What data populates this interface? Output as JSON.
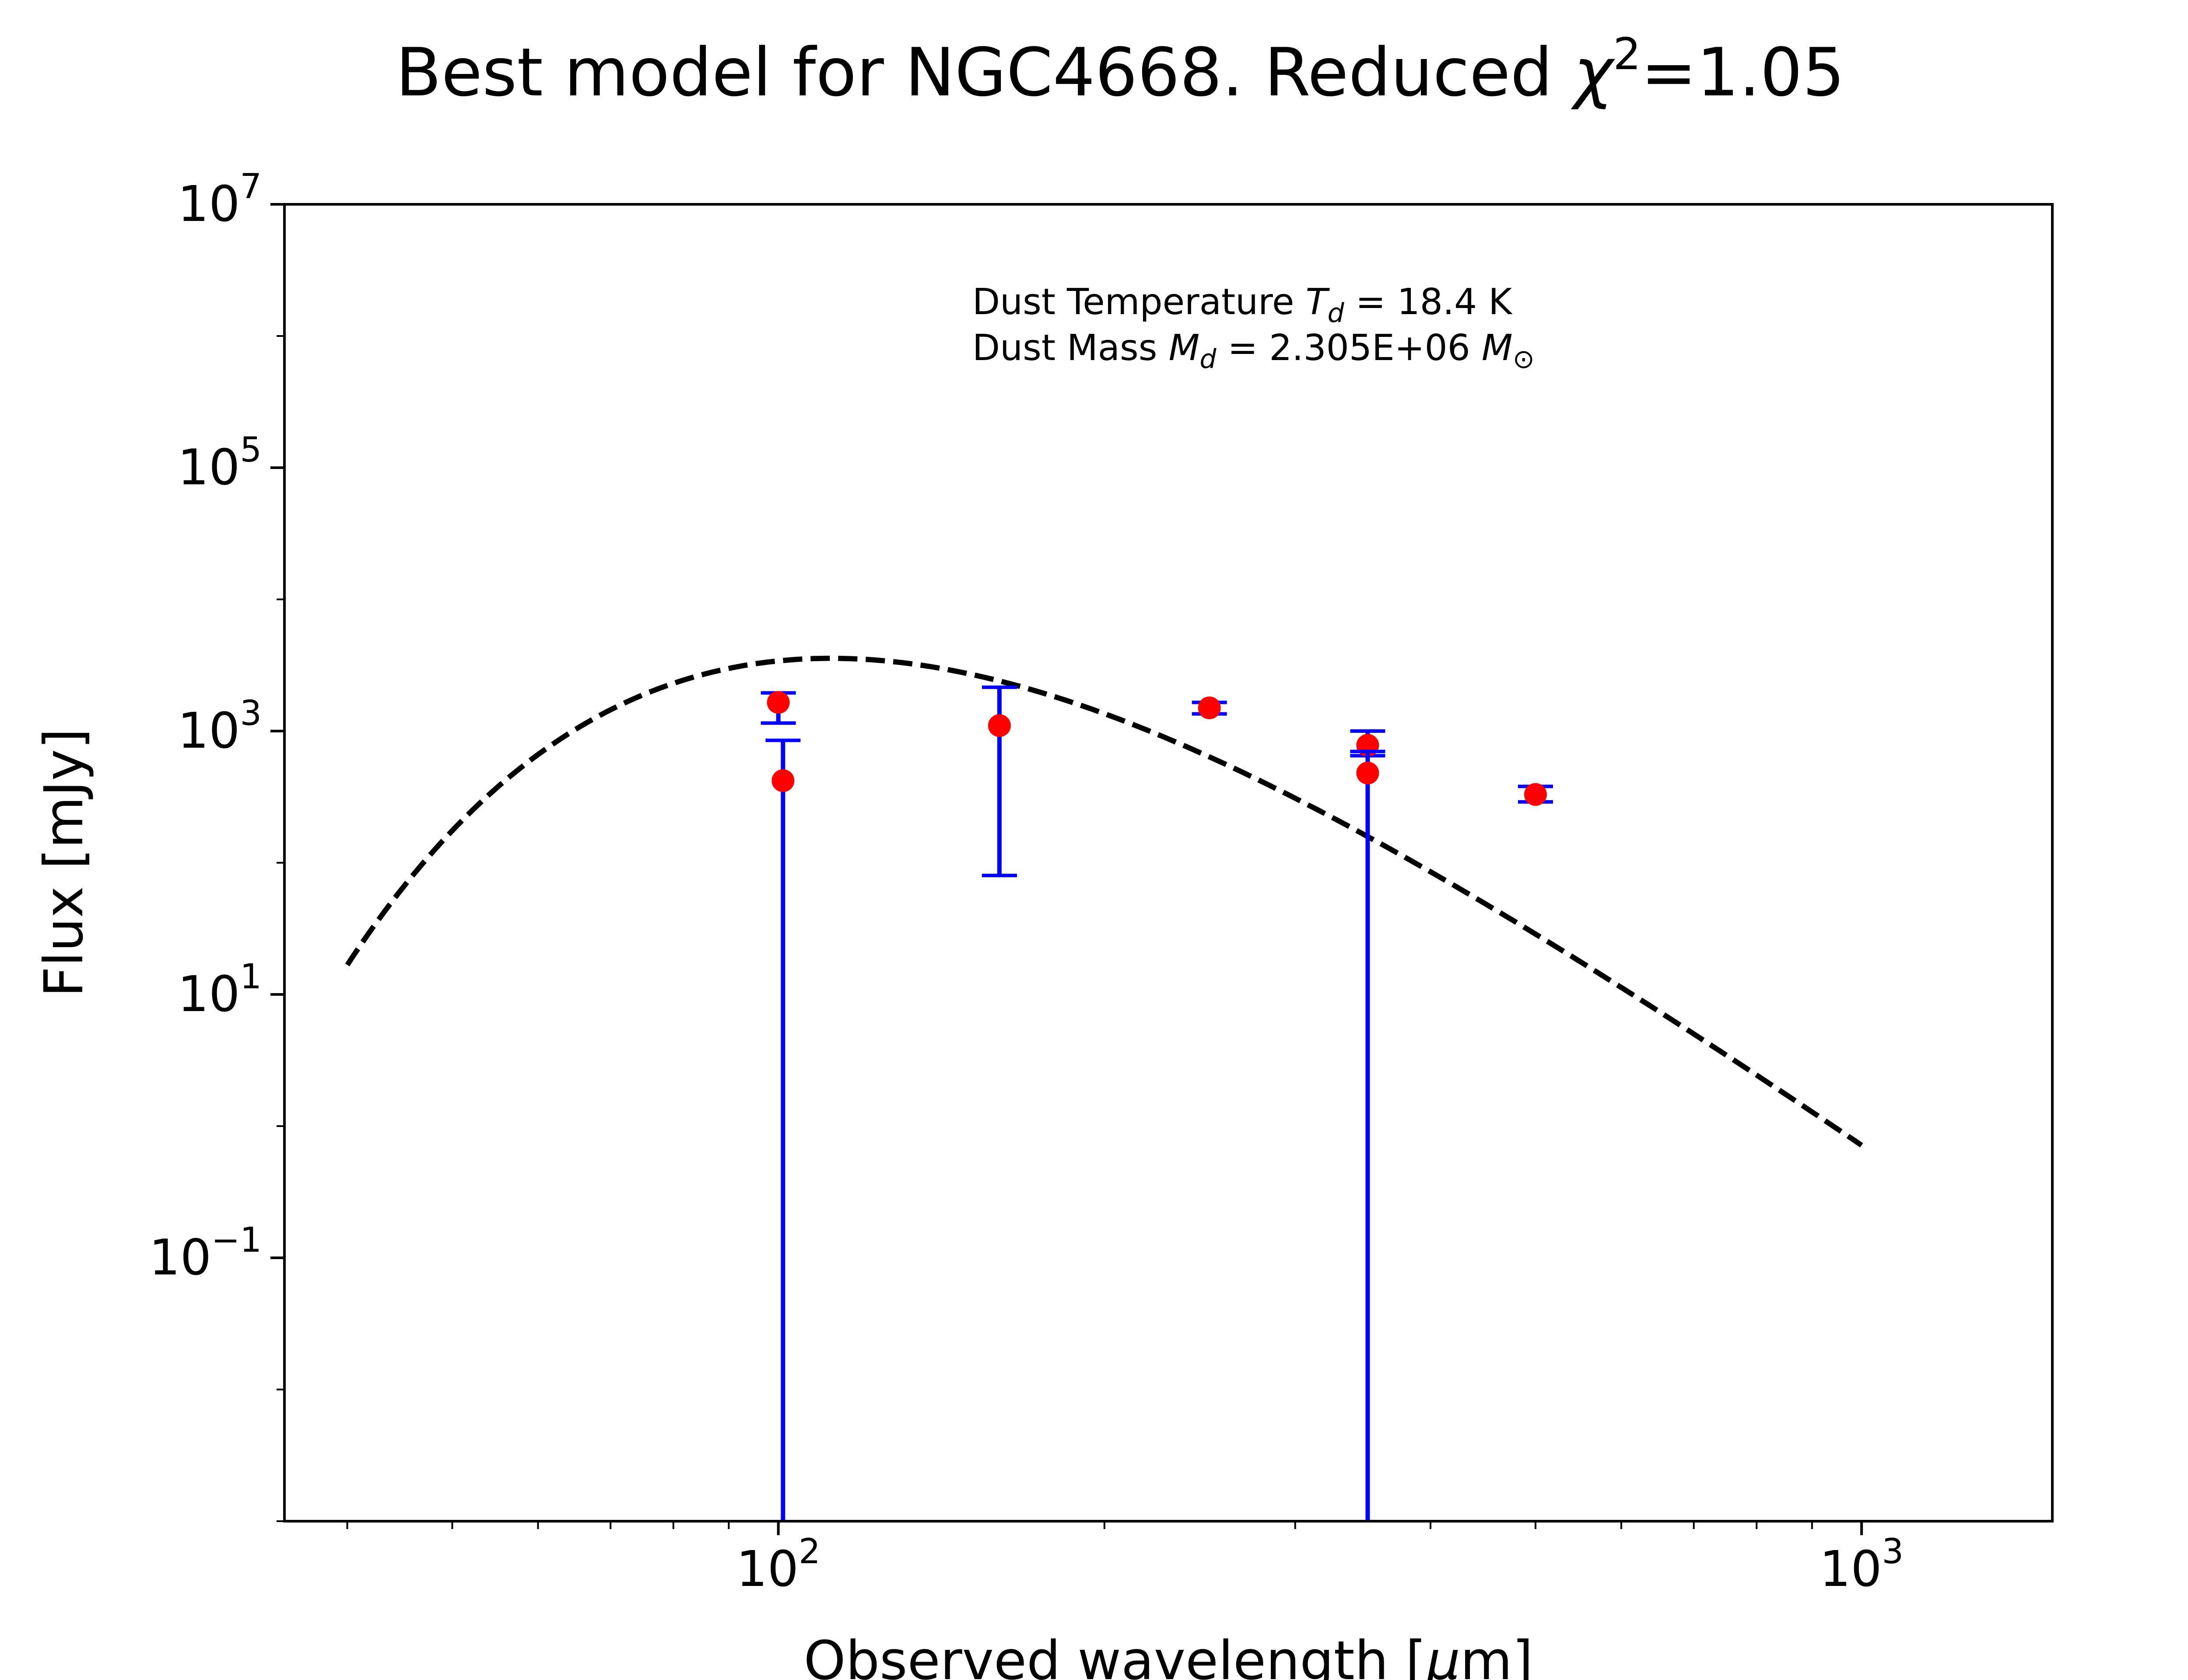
{
  "chart_data": {
    "type": "scatter",
    "title": {
      "main": "Best model for NGC4668. Reduced ",
      "chi": "χ",
      "sup": "2",
      "tail": "=1.05"
    },
    "xlabel": {
      "pre": "Observed wavelength [",
      "mu": "μ",
      "post": "m]"
    },
    "ylabel": "Flux [mJy]",
    "x_scale": "log",
    "y_scale": "log",
    "xlim": [
      35,
      1500
    ],
    "ylim": [
      0.001,
      10000000
    ],
    "x_ticks": [
      {
        "value": 100,
        "base": "10",
        "exp": "2"
      },
      {
        "value": 1000,
        "base": "10",
        "exp": "3"
      }
    ],
    "y_ticks": [
      {
        "value": 0.1,
        "base": "10",
        "exp": "−1"
      },
      {
        "value": 10,
        "base": "10",
        "exp": "1"
      },
      {
        "value": 1000,
        "base": "10",
        "exp": "3"
      },
      {
        "value": 100000,
        "base": "10",
        "exp": "5"
      },
      {
        "value": 10000000,
        "base": "10",
        "exp": "7"
      }
    ],
    "grid": false,
    "model": {
      "style": "dashed",
      "color": "#000000",
      "temperature_K": 18.4,
      "x_range": [
        40,
        1000
      ],
      "peak": {
        "x": 170,
        "y": 2100
      }
    },
    "observations": {
      "marker_color": "#ff0000",
      "errorbar_color": "#0000ff",
      "points": [
        {
          "x": 100,
          "y": 1650,
          "err_low": 1150,
          "err_high": 1950
        },
        {
          "x": 101,
          "y": 420,
          "err_low": 0.001,
          "err_high": 850
        },
        {
          "x": 160,
          "y": 1100,
          "err_low": 80,
          "err_high": 2150
        },
        {
          "x": 250,
          "y": 1500,
          "err_low": 1350,
          "err_high": 1650
        },
        {
          "x": 350,
          "y": 780,
          "err_low": 650,
          "err_high": 1000
        },
        {
          "x": 350,
          "y": 480,
          "err_low": 0.001,
          "err_high": 700
        },
        {
          "x": 500,
          "y": 330,
          "err_low": 290,
          "err_high": 380
        }
      ]
    },
    "annotations": {
      "line1": {
        "prefix": "Dust Temperature ",
        "sym": "T",
        "sub": "d",
        "suffix": " = 18.4 K"
      },
      "line2": {
        "prefix": "Dust Mass ",
        "sym": "M",
        "sub": "d",
        "middle": " = 2.305E+06 ",
        "sym2": "M",
        "sub2": "⊙"
      }
    }
  }
}
